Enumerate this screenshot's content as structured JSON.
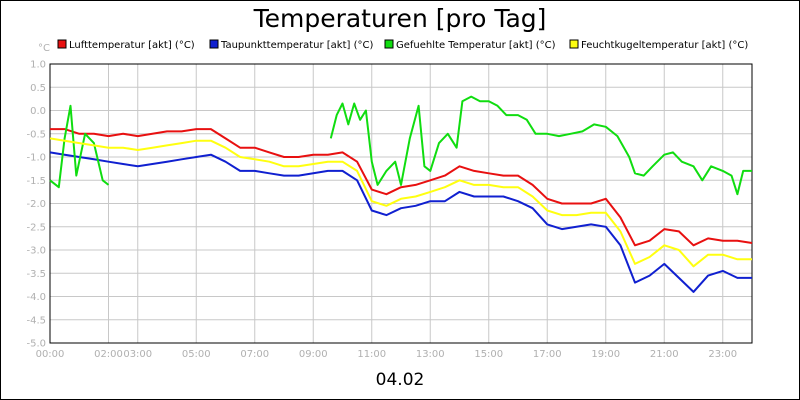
{
  "chart_data": {
    "type": "line",
    "title": "Temperaturen [pro Tag]",
    "ylabel": "°C",
    "xlabel": "04.02",
    "ylim": [
      -5.0,
      1.0
    ],
    "xlim": [
      0,
      24
    ],
    "grid": true,
    "legend_position": "top",
    "yticks": [
      "1.0",
      "0.5",
      "0.0",
      "-0.5",
      "-1.0",
      "-1.5",
      "-2.0",
      "-2.5",
      "-3.0",
      "-3.5",
      "-4.0",
      "-4.5",
      "-5.0"
    ],
    "xticks": [
      {
        "x": 0,
        "label": "00:00"
      },
      {
        "x": 2,
        "label": "02:00"
      },
      {
        "x": 3,
        "label": "03:00"
      },
      {
        "x": 5,
        "label": "05:00"
      },
      {
        "x": 7,
        "label": "07:00"
      },
      {
        "x": 9,
        "label": "09:00"
      },
      {
        "x": 11,
        "label": "11:00"
      },
      {
        "x": 13,
        "label": "13:00"
      },
      {
        "x": 15,
        "label": "15:00"
      },
      {
        "x": 17,
        "label": "17:00"
      },
      {
        "x": 19,
        "label": "19:00"
      },
      {
        "x": 21,
        "label": "21:00"
      },
      {
        "x": 23,
        "label": "23:00"
      }
    ],
    "series": [
      {
        "name": "Lufttemperatur [akt] (°C)",
        "color": "#e81010",
        "points": [
          [
            0,
            -0.4
          ],
          [
            0.5,
            -0.4
          ],
          [
            1,
            -0.5
          ],
          [
            1.5,
            -0.5
          ],
          [
            2,
            -0.55
          ],
          [
            2.5,
            -0.5
          ],
          [
            3,
            -0.55
          ],
          [
            3.5,
            -0.5
          ],
          [
            4,
            -0.45
          ],
          [
            4.5,
            -0.45
          ],
          [
            5,
            -0.4
          ],
          [
            5.5,
            -0.4
          ],
          [
            6,
            -0.6
          ],
          [
            6.5,
            -0.8
          ],
          [
            7,
            -0.8
          ],
          [
            7.5,
            -0.9
          ],
          [
            8,
            -1.0
          ],
          [
            8.5,
            -1.0
          ],
          [
            9,
            -0.95
          ],
          [
            9.5,
            -0.95
          ],
          [
            10,
            -0.9
          ],
          [
            10.5,
            -1.1
          ],
          [
            11,
            -1.7
          ],
          [
            11.5,
            -1.8
          ],
          [
            12,
            -1.65
          ],
          [
            12.5,
            -1.6
          ],
          [
            13,
            -1.5
          ],
          [
            13.5,
            -1.4
          ],
          [
            14,
            -1.2
          ],
          [
            14.5,
            -1.3
          ],
          [
            15,
            -1.35
          ],
          [
            15.5,
            -1.4
          ],
          [
            16,
            -1.4
          ],
          [
            16.5,
            -1.6
          ],
          [
            17,
            -1.9
          ],
          [
            17.5,
            -2.0
          ],
          [
            18,
            -2.0
          ],
          [
            18.5,
            -2.0
          ],
          [
            19,
            -1.9
          ],
          [
            19.5,
            -2.3
          ],
          [
            20,
            -2.9
          ],
          [
            20.5,
            -2.8
          ],
          [
            21,
            -2.55
          ],
          [
            21.5,
            -2.6
          ],
          [
            22,
            -2.9
          ],
          [
            22.5,
            -2.75
          ],
          [
            23,
            -2.8
          ],
          [
            23.5,
            -2.8
          ],
          [
            24,
            -2.85
          ]
        ]
      },
      {
        "name": "Taupunkttemperatur [akt] (°C)",
        "color": "#1020d0",
        "points": [
          [
            0,
            -0.9
          ],
          [
            0.5,
            -0.95
          ],
          [
            1,
            -1.0
          ],
          [
            1.5,
            -1.05
          ],
          [
            2,
            -1.1
          ],
          [
            2.5,
            -1.15
          ],
          [
            3,
            -1.2
          ],
          [
            3.5,
            -1.15
          ],
          [
            4,
            -1.1
          ],
          [
            4.5,
            -1.05
          ],
          [
            5,
            -1.0
          ],
          [
            5.5,
            -0.95
          ],
          [
            6,
            -1.1
          ],
          [
            6.5,
            -1.3
          ],
          [
            7,
            -1.3
          ],
          [
            7.5,
            -1.35
          ],
          [
            8,
            -1.4
          ],
          [
            8.5,
            -1.4
          ],
          [
            9,
            -1.35
          ],
          [
            9.5,
            -1.3
          ],
          [
            10,
            -1.3
          ],
          [
            10.5,
            -1.5
          ],
          [
            11,
            -2.15
          ],
          [
            11.5,
            -2.25
          ],
          [
            12,
            -2.1
          ],
          [
            12.5,
            -2.05
          ],
          [
            13,
            -1.95
          ],
          [
            13.5,
            -1.95
          ],
          [
            14,
            -1.75
          ],
          [
            14.5,
            -1.85
          ],
          [
            15,
            -1.85
          ],
          [
            15.5,
            -1.85
          ],
          [
            16,
            -1.95
          ],
          [
            16.5,
            -2.1
          ],
          [
            17,
            -2.45
          ],
          [
            17.5,
            -2.55
          ],
          [
            18,
            -2.5
          ],
          [
            18.5,
            -2.45
          ],
          [
            19,
            -2.5
          ],
          [
            19.5,
            -2.9
          ],
          [
            20,
            -3.7
          ],
          [
            20.5,
            -3.55
          ],
          [
            21,
            -3.3
          ],
          [
            21.5,
            -3.6
          ],
          [
            22,
            -3.9
          ],
          [
            22.5,
            -3.55
          ],
          [
            23,
            -3.45
          ],
          [
            23.5,
            -3.6
          ],
          [
            24,
            -3.6
          ]
        ]
      },
      {
        "name": "Gefuehlte Temperatur [akt] (°C)",
        "color": "#10dd10",
        "points": [
          [
            0,
            -1.5
          ],
          [
            0.3,
            -1.65
          ],
          [
            0.5,
            -0.6
          ],
          [
            0.7,
            0.1
          ],
          [
            0.9,
            -1.4
          ],
          [
            1.2,
            -0.5
          ],
          [
            1.5,
            -0.7
          ],
          [
            1.8,
            -1.5
          ],
          [
            2.0,
            -1.6
          ],
          [
            null,
            null
          ],
          [
            9.6,
            -0.6
          ],
          [
            9.8,
            -0.1
          ],
          [
            10,
            0.15
          ],
          [
            10.2,
            -0.3
          ],
          [
            10.4,
            0.15
          ],
          [
            10.6,
            -0.2
          ],
          [
            10.8,
            0.0
          ],
          [
            11,
            -1.1
          ],
          [
            11.2,
            -1.6
          ],
          [
            11.5,
            -1.3
          ],
          [
            11.8,
            -1.1
          ],
          [
            12,
            -1.6
          ],
          [
            12.3,
            -0.6
          ],
          [
            12.6,
            0.1
          ],
          [
            12.8,
            -1.2
          ],
          [
            13,
            -1.3
          ],
          [
            13.3,
            -0.7
          ],
          [
            13.6,
            -0.5
          ],
          [
            13.9,
            -0.8
          ],
          [
            14.1,
            0.2
          ],
          [
            14.4,
            0.3
          ],
          [
            14.7,
            0.2
          ],
          [
            15,
            0.2
          ],
          [
            15.3,
            0.1
          ],
          [
            15.6,
            -0.1
          ],
          [
            16,
            -0.1
          ],
          [
            16.3,
            -0.2
          ],
          [
            16.6,
            -0.5
          ],
          [
            17,
            -0.5
          ],
          [
            17.4,
            -0.55
          ],
          [
            17.8,
            -0.5
          ],
          [
            18.2,
            -0.45
          ],
          [
            18.6,
            -0.3
          ],
          [
            19,
            -0.35
          ],
          [
            19.4,
            -0.55
          ],
          [
            19.8,
            -1.0
          ],
          [
            20,
            -1.35
          ],
          [
            20.3,
            -1.4
          ],
          [
            20.6,
            -1.2
          ],
          [
            21,
            -0.95
          ],
          [
            21.3,
            -0.9
          ],
          [
            21.6,
            -1.1
          ],
          [
            22,
            -1.2
          ],
          [
            22.3,
            -1.5
          ],
          [
            22.6,
            -1.2
          ],
          [
            23,
            -1.3
          ],
          [
            23.3,
            -1.4
          ],
          [
            23.5,
            -1.8
          ],
          [
            23.7,
            -1.3
          ],
          [
            24,
            -1.3
          ]
        ]
      },
      {
        "name": "Feuchtkugeltemperatur [akt] (°C)",
        "color": "#ffff10",
        "points": [
          [
            0,
            -0.6
          ],
          [
            0.5,
            -0.65
          ],
          [
            1,
            -0.7
          ],
          [
            1.5,
            -0.75
          ],
          [
            2,
            -0.8
          ],
          [
            2.5,
            -0.8
          ],
          [
            3,
            -0.85
          ],
          [
            3.5,
            -0.8
          ],
          [
            4,
            -0.75
          ],
          [
            4.5,
            -0.7
          ],
          [
            5,
            -0.65
          ],
          [
            5.5,
            -0.65
          ],
          [
            6,
            -0.8
          ],
          [
            6.5,
            -1.0
          ],
          [
            7,
            -1.05
          ],
          [
            7.5,
            -1.1
          ],
          [
            8,
            -1.2
          ],
          [
            8.5,
            -1.2
          ],
          [
            9,
            -1.15
          ],
          [
            9.5,
            -1.1
          ],
          [
            10,
            -1.1
          ],
          [
            10.5,
            -1.3
          ],
          [
            11,
            -1.95
          ],
          [
            11.5,
            -2.05
          ],
          [
            12,
            -1.9
          ],
          [
            12.5,
            -1.85
          ],
          [
            13,
            -1.75
          ],
          [
            13.5,
            -1.65
          ],
          [
            14,
            -1.5
          ],
          [
            14.5,
            -1.6
          ],
          [
            15,
            -1.6
          ],
          [
            15.5,
            -1.65
          ],
          [
            16,
            -1.65
          ],
          [
            16.5,
            -1.85
          ],
          [
            17,
            -2.15
          ],
          [
            17.5,
            -2.25
          ],
          [
            18,
            -2.25
          ],
          [
            18.5,
            -2.2
          ],
          [
            19,
            -2.2
          ],
          [
            19.5,
            -2.6
          ],
          [
            20,
            -3.3
          ],
          [
            20.5,
            -3.15
          ],
          [
            21,
            -2.9
          ],
          [
            21.5,
            -3.0
          ],
          [
            22,
            -3.35
          ],
          [
            22.5,
            -3.1
          ],
          [
            23,
            -3.1
          ],
          [
            23.5,
            -3.2
          ],
          [
            24,
            -3.2
          ]
        ]
      }
    ]
  }
}
